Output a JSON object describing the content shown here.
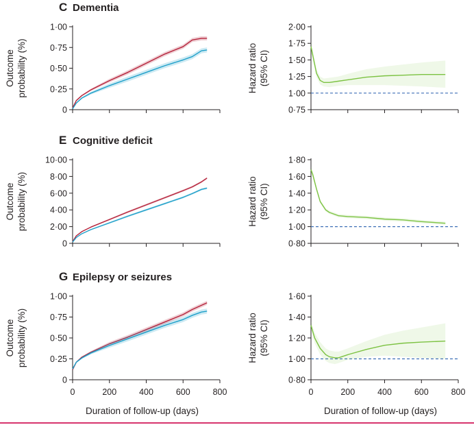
{
  "figure": {
    "x_axis_label": "Duration of follow-up (days)",
    "left_y_label": [
      "Outcome",
      "probability (%)"
    ],
    "right_y_label": [
      "Hazard ratio",
      "(95% CI)"
    ],
    "x_ticks": [
      "0",
      "200",
      "400",
      "600",
      "800"
    ],
    "colors": {
      "series_a": "#b5233b",
      "series_b": "#1d9fc9",
      "hazard": "#7cc242",
      "reference": "#3d6fb6",
      "accent_rule": "#d6336c"
    }
  },
  "chart_data": [
    {
      "id": "C-left",
      "type": "line",
      "letter": "C",
      "title": "Dementia",
      "ylabel": "Outcome probability (%)",
      "xlabel": "",
      "xlim": [
        0,
        800
      ],
      "ylim": [
        0,
        1
      ],
      "y_ticks": [
        "0",
        "0·25",
        "0·50",
        "0·75",
        "1·00"
      ],
      "series": [
        {
          "name": "series-red",
          "color": "#b5233b",
          "x": [
            0,
            20,
            50,
            100,
            200,
            300,
            400,
            500,
            600,
            650,
            700,
            730
          ],
          "values": [
            0.02,
            0.11,
            0.17,
            0.24,
            0.35,
            0.45,
            0.56,
            0.67,
            0.76,
            0.84,
            0.86,
            0.86
          ],
          "band": 0.025
        },
        {
          "name": "series-blue",
          "color": "#1d9fc9",
          "x": [
            0,
            20,
            50,
            100,
            200,
            300,
            400,
            500,
            600,
            650,
            700,
            730
          ],
          "values": [
            0.01,
            0.08,
            0.14,
            0.2,
            0.29,
            0.37,
            0.45,
            0.53,
            0.6,
            0.64,
            0.71,
            0.72
          ],
          "band": 0.03
        }
      ]
    },
    {
      "id": "C-right",
      "type": "line",
      "ylabel": "Hazard ratio (95% CI)",
      "xlabel": "",
      "xlim": [
        0,
        800
      ],
      "ylim": [
        0.75,
        2.0
      ],
      "y_ticks": [
        "0·75",
        "1·00",
        "1·25",
        "1·50",
        "1·75",
        "2·00"
      ],
      "reference_line": 1.0,
      "series": [
        {
          "name": "hazard-ratio",
          "color": "#7cc242",
          "x": [
            0,
            15,
            30,
            50,
            70,
            100,
            150,
            200,
            300,
            400,
            500,
            600,
            730
          ],
          "values": [
            1.7,
            1.5,
            1.3,
            1.19,
            1.16,
            1.16,
            1.18,
            1.2,
            1.24,
            1.26,
            1.27,
            1.28,
            1.28
          ],
          "lower": [
            1.62,
            1.43,
            1.24,
            1.13,
            1.1,
            1.09,
            1.11,
            1.12,
            1.12,
            1.12,
            1.11,
            1.1,
            1.08
          ],
          "upper": [
            1.78,
            1.57,
            1.36,
            1.25,
            1.22,
            1.23,
            1.25,
            1.29,
            1.36,
            1.4,
            1.43,
            1.46,
            1.49
          ]
        }
      ]
    },
    {
      "id": "E-left",
      "type": "line",
      "letter": "E",
      "title": "Cognitive deficit",
      "ylabel": "Outcome probability (%)",
      "xlabel": "",
      "xlim": [
        0,
        800
      ],
      "ylim": [
        0,
        10
      ],
      "y_ticks": [
        "0",
        "2·00",
        "4·00",
        "6·00",
        "8·00",
        "10·00"
      ],
      "series": [
        {
          "name": "series-red",
          "color": "#b5233b",
          "x": [
            0,
            20,
            50,
            100,
            200,
            300,
            400,
            500,
            600,
            650,
            700,
            730
          ],
          "values": [
            0.2,
            0.9,
            1.4,
            1.95,
            2.85,
            3.75,
            4.6,
            5.45,
            6.3,
            6.75,
            7.35,
            7.8
          ],
          "band": 0.12
        },
        {
          "name": "series-blue",
          "color": "#1d9fc9",
          "x": [
            0,
            20,
            50,
            100,
            200,
            300,
            400,
            500,
            600,
            650,
            700,
            730
          ],
          "values": [
            0.15,
            0.7,
            1.15,
            1.65,
            2.45,
            3.25,
            4.0,
            4.75,
            5.5,
            5.95,
            6.45,
            6.6
          ],
          "band": 0.12
        }
      ]
    },
    {
      "id": "E-right",
      "type": "line",
      "ylabel": "Hazard ratio (95% CI)",
      "xlabel": "",
      "xlim": [
        0,
        800
      ],
      "ylim": [
        0.8,
        1.8
      ],
      "y_ticks": [
        "0·80",
        "1·00",
        "1·20",
        "1·40",
        "1·60",
        "1·80"
      ],
      "reference_line": 1.0,
      "series": [
        {
          "name": "hazard-ratio",
          "color": "#7cc242",
          "x": [
            0,
            10,
            30,
            50,
            80,
            100,
            150,
            200,
            300,
            400,
            500,
            600,
            730
          ],
          "values": [
            1.68,
            1.62,
            1.45,
            1.3,
            1.2,
            1.17,
            1.13,
            1.12,
            1.11,
            1.09,
            1.08,
            1.06,
            1.04
          ],
          "lower": [
            1.64,
            1.58,
            1.42,
            1.28,
            1.18,
            1.15,
            1.11,
            1.1,
            1.09,
            1.07,
            1.06,
            1.04,
            1.02
          ],
          "upper": [
            1.72,
            1.66,
            1.48,
            1.32,
            1.22,
            1.19,
            1.15,
            1.14,
            1.13,
            1.11,
            1.1,
            1.08,
            1.06
          ]
        }
      ]
    },
    {
      "id": "G-left",
      "type": "line",
      "letter": "G",
      "title": "Epilepsy or seizures",
      "ylabel": "Outcome probability (%)",
      "xlabel": "Duration of follow-up (days)",
      "xlim": [
        0,
        800
      ],
      "ylim": [
        0,
        1
      ],
      "y_ticks": [
        "0",
        "0·25",
        "0·50",
        "0·75",
        "1·00"
      ],
      "x_ticks": [
        "0",
        "200",
        "400",
        "600",
        "800"
      ],
      "series": [
        {
          "name": "series-red",
          "color": "#b5233b",
          "x": [
            0,
            20,
            50,
            100,
            200,
            300,
            400,
            500,
            600,
            650,
            700,
            730
          ],
          "values": [
            0.12,
            0.21,
            0.27,
            0.33,
            0.43,
            0.51,
            0.6,
            0.69,
            0.78,
            0.84,
            0.89,
            0.92
          ],
          "band": 0.025
        },
        {
          "name": "series-blue",
          "color": "#1d9fc9",
          "x": [
            0,
            20,
            50,
            100,
            200,
            300,
            400,
            500,
            600,
            650,
            700,
            730
          ],
          "values": [
            0.13,
            0.21,
            0.26,
            0.32,
            0.41,
            0.49,
            0.57,
            0.65,
            0.72,
            0.77,
            0.81,
            0.82
          ],
          "band": 0.03
        }
      ]
    },
    {
      "id": "G-right",
      "type": "line",
      "ylabel": "Hazard ratio (95% CI)",
      "xlabel": "Duration of follow-up (days)",
      "xlim": [
        0,
        800
      ],
      "ylim": [
        0.8,
        1.6
      ],
      "y_ticks": [
        "0·80",
        "1·00",
        "1·20",
        "1·40",
        "1·60"
      ],
      "x_ticks": [
        "0",
        "200",
        "400",
        "600",
        "800"
      ],
      "reference_line": 1.0,
      "series": [
        {
          "name": "hazard-ratio",
          "color": "#7cc242",
          "x": [
            0,
            20,
            50,
            80,
            100,
            130,
            150,
            200,
            300,
            400,
            500,
            600,
            730
          ],
          "values": [
            1.32,
            1.2,
            1.1,
            1.04,
            1.02,
            1.01,
            1.01,
            1.04,
            1.09,
            1.13,
            1.15,
            1.16,
            1.17
          ],
          "lower": [
            1.28,
            1.15,
            1.04,
            0.98,
            0.96,
            0.95,
            0.96,
            0.99,
            1.02,
            1.03,
            1.02,
            1.01,
            1.0
          ],
          "upper": [
            1.36,
            1.25,
            1.16,
            1.1,
            1.08,
            1.07,
            1.07,
            1.1,
            1.17,
            1.23,
            1.27,
            1.3,
            1.34
          ]
        }
      ]
    }
  ]
}
